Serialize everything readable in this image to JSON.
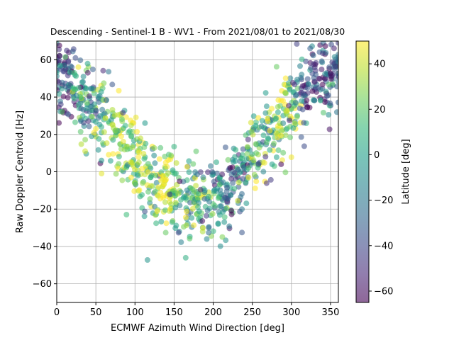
{
  "chart_data": {
    "type": "scatter",
    "title": "Descending - Sentinel-1 B - WV1 - From 2021/08/01 to 2021/08/30",
    "xlabel": "ECMWF Azimuth Wind Direction [deg]",
    "ylabel": "Raw Doppler Centroid [Hz]",
    "xlim": [
      0,
      360
    ],
    "ylim": [
      -70,
      70
    ],
    "xticks": [
      0,
      50,
      100,
      150,
      200,
      250,
      300,
      350
    ],
    "yticks": [
      -60,
      -40,
      -20,
      0,
      20,
      40,
      60
    ],
    "grid": true,
    "marker_alpha": 0.55,
    "colorbar": {
      "label": "Latitude [deg]",
      "range": [
        -65,
        50
      ],
      "ticks": [
        -60,
        -40,
        -20,
        0,
        20,
        40
      ],
      "colormap": "viridis",
      "colors": [
        "#440154",
        "#482878",
        "#3e4989",
        "#31688e",
        "#26828e",
        "#1f9e89",
        "#35b779",
        "#6ece58",
        "#b5de2b",
        "#fde725"
      ]
    },
    "description_of_distribution": "approx. 5000 points forming a V shape: Doppler ~50 Hz near 0 and 360 deg, ~-15 Hz near 180 deg",
    "representative_points": [
      {
        "x": 5,
        "y": 55,
        "c": -40
      },
      {
        "x": 15,
        "y": 45,
        "c": -35
      },
      {
        "x": 30,
        "y": 40,
        "c": 10
      },
      {
        "x": 45,
        "y": 35,
        "c": -20
      },
      {
        "x": 60,
        "y": 28,
        "c": 5
      },
      {
        "x": 75,
        "y": 22,
        "c": 30
      },
      {
        "x": 90,
        "y": 12,
        "c": 20
      },
      {
        "x": 105,
        "y": 5,
        "c": 35
      },
      {
        "x": 120,
        "y": -3,
        "c": 15
      },
      {
        "x": 135,
        "y": -8,
        "c": 40
      },
      {
        "x": 150,
        "y": -10,
        "c": 25
      },
      {
        "x": 165,
        "y": -14,
        "c": 0
      },
      {
        "x": 180,
        "y": -15,
        "c": 10
      },
      {
        "x": 195,
        "y": -16,
        "c": -20
      },
      {
        "x": 210,
        "y": -12,
        "c": -10
      },
      {
        "x": 225,
        "y": -6,
        "c": -30
      },
      {
        "x": 240,
        "y": 2,
        "c": -15
      },
      {
        "x": 255,
        "y": 10,
        "c": 20
      },
      {
        "x": 270,
        "y": 18,
        "c": 5
      },
      {
        "x": 285,
        "y": 26,
        "c": 30
      },
      {
        "x": 300,
        "y": 34,
        "c": 25
      },
      {
        "x": 315,
        "y": 42,
        "c": -40
      },
      {
        "x": 330,
        "y": 48,
        "c": -45
      },
      {
        "x": 345,
        "y": 52,
        "c": -30
      },
      {
        "x": 355,
        "y": 55,
        "c": -35
      }
    ]
  }
}
